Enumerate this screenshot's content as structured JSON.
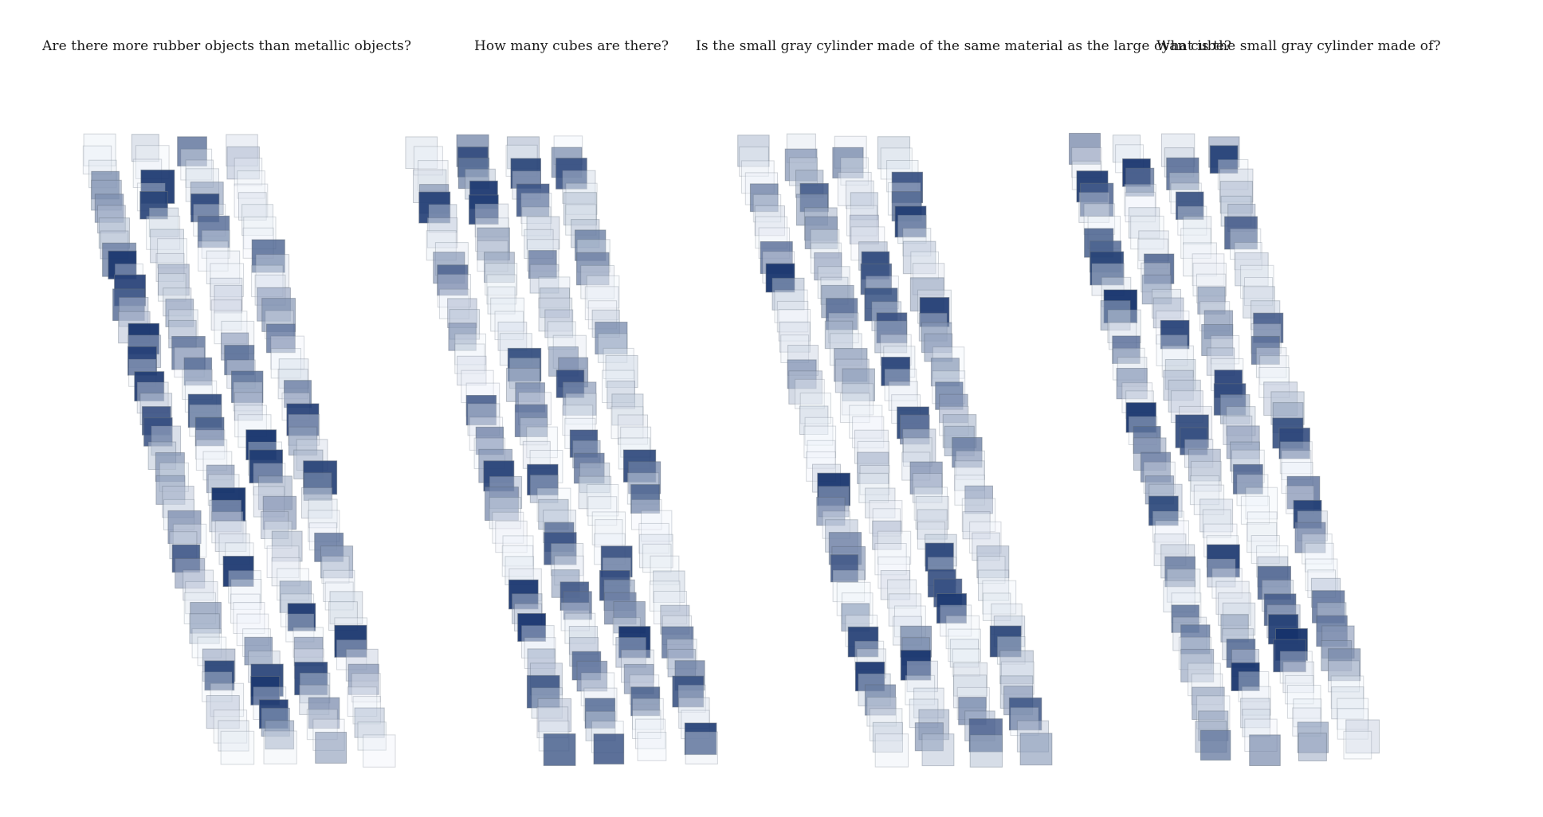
{
  "questions": [
    "Are there more rubber objects than metallic objects?",
    "How many cubes are there?",
    "Is the small gray cylinder made of the same material as the large cyan cube?",
    "What is the small gray cylinder made of?"
  ],
  "colors": {
    "low": "#eef3f9",
    "high": "#13306a",
    "stroke": "#5f6b7a"
  }
}
